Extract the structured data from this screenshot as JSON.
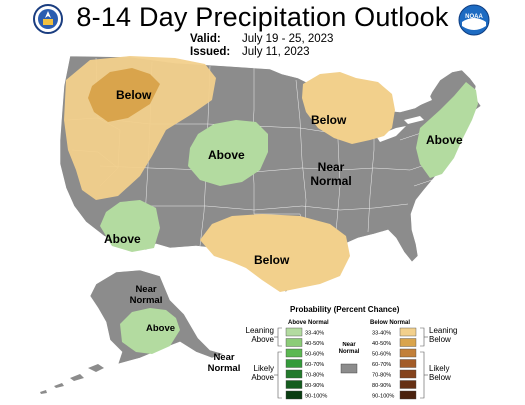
{
  "title": "8-14 Day Precipitation Outlook",
  "valid_label": "Valid:",
  "valid_value": "July 19 - 25, 2023",
  "issued_label": "Issued:",
  "issued_value": "July 11, 2023",
  "noaa_logo_text": "NOAA",
  "region_labels": {
    "northwest": "Below",
    "great_lakes": "Below",
    "central_plains": "Above",
    "northeast": "Above",
    "central": "Near Normal",
    "southwest": "Above",
    "texas": "Below",
    "alaska_north": "Near Normal",
    "alaska_east": "Above",
    "alaska_south": "Near Normal"
  },
  "legend": {
    "title": "Probability (Percent Chance)",
    "above_header": "Above Normal",
    "below_header": "Below Normal",
    "near_normal": "Near Normal",
    "leaning_above": "Leaning Above",
    "likely_above": "Likely Above",
    "leaning_below": "Leaning Below",
    "likely_below": "Likely Below",
    "ranges": [
      "33-40%",
      "40-50%",
      "50-60%",
      "60-70%",
      "70-80%",
      "80-90%",
      "90-100%"
    ],
    "above_colors": [
      "#b3dba0",
      "#8ccc78",
      "#5cb852",
      "#349a3a",
      "#237a2c",
      "#145c1e",
      "#0a3d12"
    ],
    "below_colors": [
      "#f2d08c",
      "#d9a44c",
      "#c2803a",
      "#a35c28",
      "#85431c",
      "#663014",
      "#4a220e"
    ],
    "near_color": "#8c8c8c"
  },
  "colors": {
    "land": "#8c8c8c",
    "above_33_40": "#b3dba0",
    "below_33_40": "#f2d08c",
    "below_40_50": "#d9a44c"
  }
}
